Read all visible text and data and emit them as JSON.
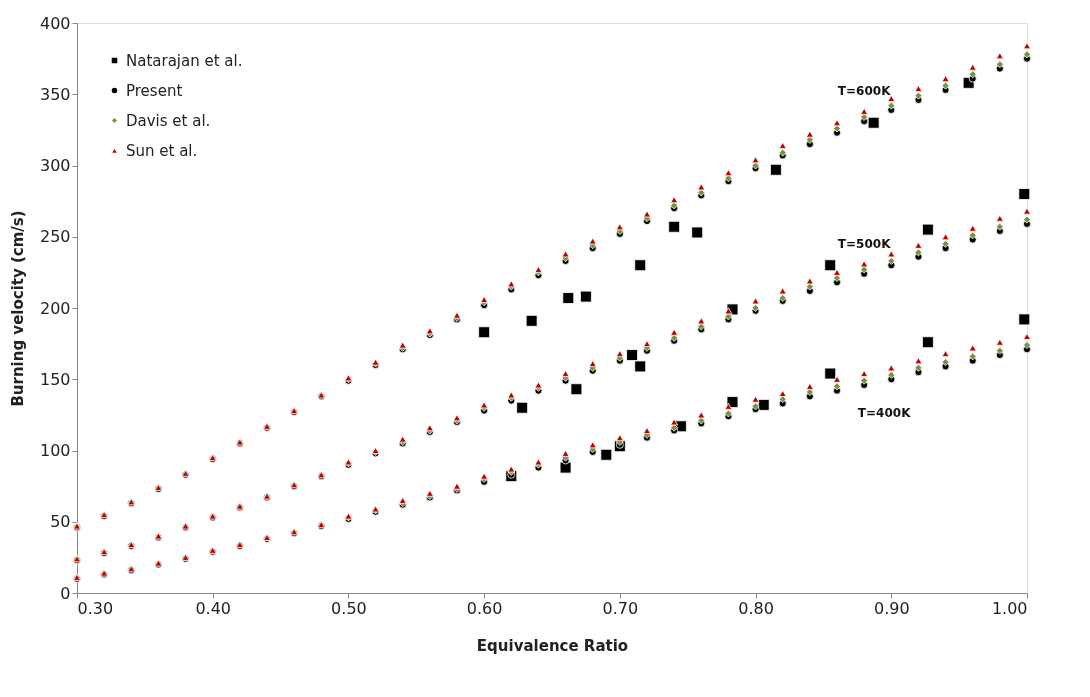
{
  "chart_data": {
    "type": "scatter",
    "xlabel": "Equivalence Ratio",
    "ylabel": "Burning velocity (cm/s)",
    "xlim": [
      0.3,
      1.0
    ],
    "xticks": [
      {
        "value": 0.3,
        "label": "0.30"
      },
      {
        "value": 0.4,
        "label": "0.40"
      },
      {
        "value": 0.5,
        "label": "0.50"
      },
      {
        "value": 0.6,
        "label": "0.60"
      },
      {
        "value": 0.7,
        "label": "0.70"
      },
      {
        "value": 0.8,
        "label": "0.80"
      },
      {
        "value": 0.9,
        "label": "0.90"
      },
      {
        "value": 1.0,
        "label": "1.00"
      }
    ],
    "ylim": [
      0,
      400
    ],
    "yticks": [
      0,
      50,
      100,
      150,
      200,
      250,
      300,
      350,
      400
    ],
    "grid": false,
    "legend": "top left",
    "x": [
      0.3,
      0.32,
      0.34,
      0.36,
      0.38,
      0.4,
      0.42,
      0.44,
      0.46,
      0.48,
      0.5,
      0.52,
      0.54,
      0.56,
      0.58,
      0.6,
      0.62,
      0.64,
      0.66,
      0.68,
      0.7,
      0.72,
      0.74,
      0.76,
      0.78,
      0.8,
      0.82,
      0.84,
      0.86,
      0.88,
      0.9,
      0.92,
      0.94,
      0.96,
      0.98,
      1.0,
      0.3,
      0.32,
      0.34,
      0.36,
      0.38,
      0.4,
      0.42,
      0.44,
      0.46,
      0.48,
      0.5,
      0.52,
      0.54,
      0.56,
      0.58,
      0.6,
      0.62,
      0.64,
      0.66,
      0.68,
      0.7,
      0.72,
      0.74,
      0.76,
      0.78,
      0.8,
      0.82,
      0.84,
      0.86,
      0.88,
      0.9,
      0.92,
      0.94,
      0.96,
      0.98,
      1.0,
      0.3,
      0.32,
      0.34,
      0.36,
      0.38,
      0.4,
      0.42,
      0.44,
      0.46,
      0.48,
      0.5,
      0.52,
      0.54,
      0.56,
      0.58,
      0.6,
      0.62,
      0.64,
      0.66,
      0.68,
      0.7,
      0.72,
      0.74,
      0.76,
      0.78,
      0.8,
      0.82,
      0.84,
      0.86,
      0.88,
      0.9,
      0.92,
      0.94,
      0.96,
      0.98,
      1.0
    ],
    "series": [
      {
        "name": "Natarajan et al.",
        "color": "#000000",
        "marker": "square",
        "x": [
          0.6,
          0.635,
          0.662,
          0.675,
          0.715,
          0.74,
          0.757,
          0.815,
          0.887,
          0.957,
          0.628,
          0.668,
          0.709,
          0.715,
          0.783,
          0.855,
          0.927,
          0.998,
          0.62,
          0.66,
          0.69,
          0.7,
          0.745,
          0.783,
          0.806,
          0.855,
          0.927,
          0.998
        ],
        "values": [
          183,
          191,
          207,
          208,
          230,
          257,
          253,
          297,
          330,
          358,
          130,
          143,
          167,
          159,
          199,
          230,
          255,
          280,
          82,
          88,
          97,
          103,
          117,
          134,
          132,
          154,
          176,
          192
        ]
      },
      {
        "name": "Present",
        "color": "#000000",
        "marker": "circle",
        "values": [
          46,
          54,
          63,
          73,
          83,
          94,
          105,
          116,
          127,
          138,
          149,
          160,
          171,
          181,
          192,
          202,
          213,
          223,
          233,
          242,
          252,
          261,
          270,
          279,
          289,
          298,
          307,
          315,
          323,
          331,
          339,
          346,
          353,
          361,
          368,
          375,
          23,
          28,
          33,
          39,
          46,
          53,
          60,
          67,
          75,
          82,
          90,
          98,
          105,
          113,
          120,
          128,
          135,
          142,
          149,
          156,
          163,
          170,
          177,
          185,
          192,
          198,
          205,
          212,
          218,
          224,
          230,
          236,
          242,
          248,
          254,
          259,
          10,
          13,
          16,
          20,
          24,
          29,
          33,
          38,
          42,
          47,
          52,
          57,
          62,
          67,
          72,
          78,
          83,
          88,
          93,
          99,
          104,
          109,
          114,
          119,
          124,
          129,
          133,
          138,
          142,
          146,
          150,
          155,
          159,
          163,
          167,
          171
        ]
      },
      {
        "name": "Davis et al.",
        "color": "#77933c",
        "marker": "diamond",
        "values": [
          47,
          55,
          64,
          74,
          84,
          95,
          106,
          117,
          128,
          139,
          150,
          161,
          172,
          182,
          193,
          204,
          215,
          225,
          235,
          244,
          254,
          263,
          272,
          281,
          291,
          300,
          309,
          318,
          326,
          334,
          342,
          349,
          356,
          364,
          371,
          378,
          24,
          29,
          34,
          40,
          47,
          54,
          61,
          68,
          76,
          83,
          91,
          99,
          106,
          114,
          121,
          130,
          137,
          144,
          151,
          158,
          165,
          172,
          179,
          187,
          194,
          200,
          207,
          215,
          221,
          227,
          233,
          239,
          245,
          251,
          257,
          262,
          11,
          14,
          17,
          21,
          25,
          30,
          34,
          39,
          43,
          48,
          53,
          58,
          63,
          68,
          73,
          80,
          85,
          90,
          95,
          101,
          106,
          111,
          116,
          121,
          126,
          131,
          136,
          141,
          145,
          149,
          153,
          158,
          162,
          166,
          170,
          174
        ]
      },
      {
        "name": "Sun et al.",
        "color": "#c00000",
        "marker": "triangle",
        "values": [
          47,
          55,
          64,
          74,
          84,
          95,
          106,
          117,
          128,
          139,
          151,
          162,
          174,
          184,
          195,
          206,
          217,
          227,
          238,
          247,
          257,
          266,
          276,
          285,
          295,
          304,
          314,
          322,
          330,
          338,
          347,
          354,
          361,
          369,
          377,
          384,
          24,
          29,
          34,
          40,
          47,
          54,
          61,
          68,
          76,
          83,
          92,
          100,
          108,
          116,
          123,
          132,
          139,
          146,
          154,
          161,
          168,
          175,
          183,
          191,
          198,
          205,
          212,
          219,
          225,
          231,
          238,
          244,
          250,
          256,
          263,
          268,
          11,
          14,
          17,
          21,
          25,
          30,
          34,
          39,
          43,
          48,
          54,
          59,
          65,
          70,
          75,
          82,
          87,
          92,
          98,
          104,
          109,
          114,
          120,
          125,
          131,
          136,
          140,
          145,
          150,
          154,
          158,
          163,
          168,
          172,
          176,
          180
        ]
      }
    ],
    "annotations": [
      "T=600K",
      "T=500K",
      "T=400K"
    ]
  }
}
